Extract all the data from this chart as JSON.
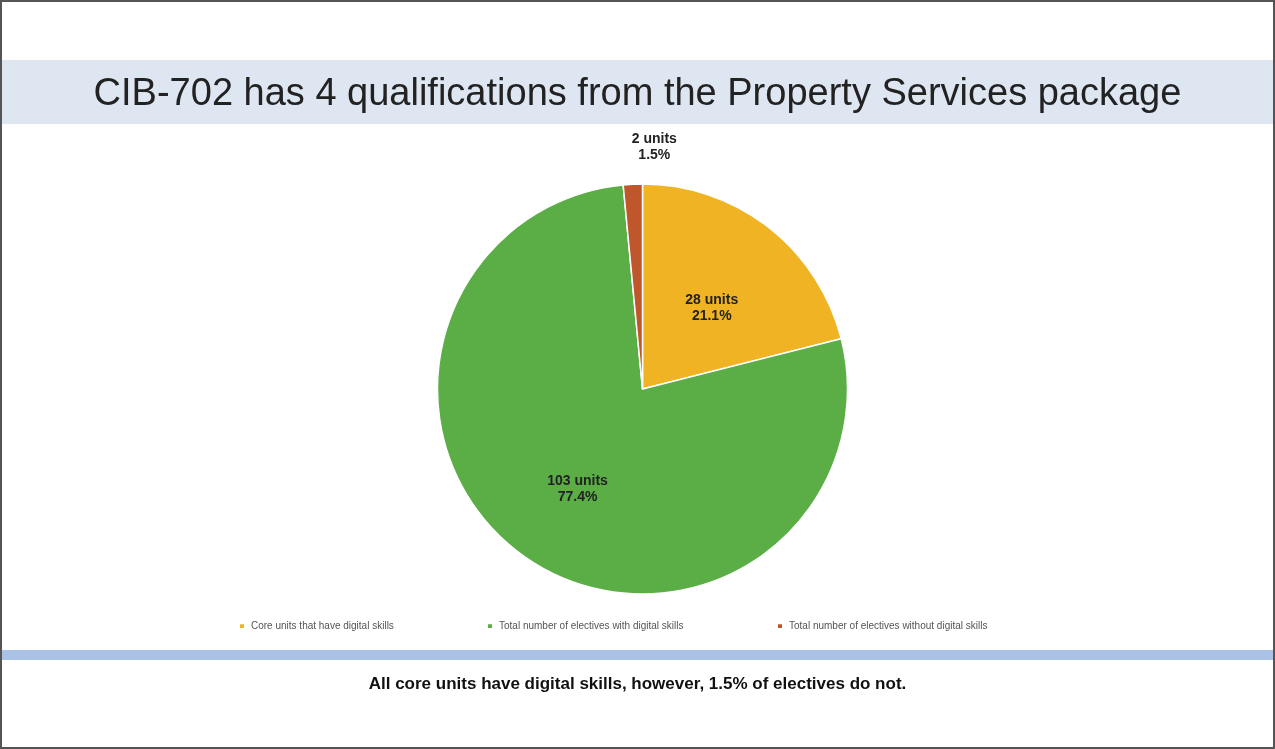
{
  "chart_data": {
    "type": "pie",
    "title": "CIB-702 has 4 qualifications from the Property Services package",
    "categories": [
      "Core units that have digital skills",
      "Total number of electives with digital skills",
      "Total number of electives without digital skills"
    ],
    "values": [
      28,
      103,
      2
    ],
    "colors": [
      "#f0b323",
      "#5bad45",
      "#c0562c"
    ],
    "value_labels": [
      "28 units\n21.1%",
      "103 units\n77.4%",
      "2 units\n1.5%"
    ],
    "legend": "bottom",
    "annotations": [
      "All core units have digital skills, however, 1.5% of electives do not."
    ]
  }
}
